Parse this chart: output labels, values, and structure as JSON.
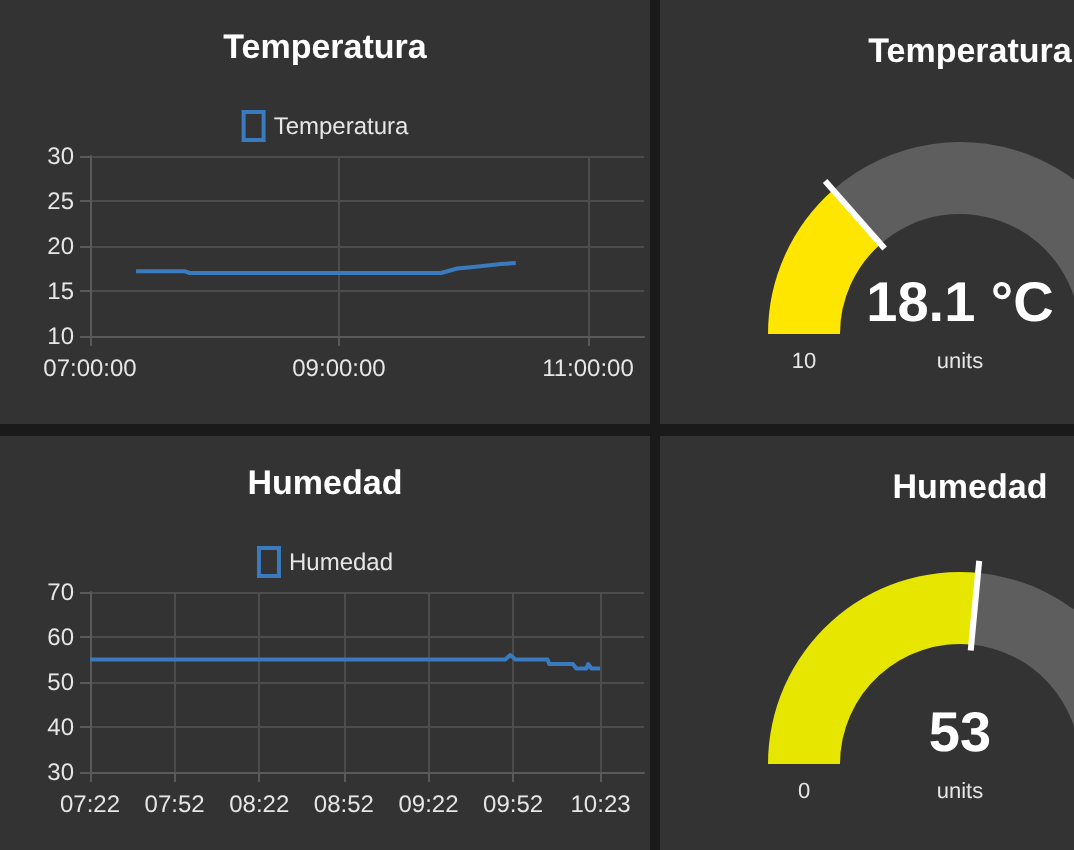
{
  "chart_data": [
    {
      "type": "line",
      "title": "Temperatura",
      "x": [
        7.37,
        7.76,
        7.8,
        9.82,
        9.95,
        10.1,
        10.3,
        10.42
      ],
      "series": [
        {
          "name": "Temperatura",
          "color": "#3a7bbf",
          "values": [
            17.2,
            17.2,
            17.0,
            17.0,
            17.5,
            17.7,
            18.0,
            18.1
          ]
        }
      ],
      "xlim": [
        7,
        11.45
      ],
      "xticks": [
        {
          "value": 7,
          "label": "07:00:00"
        },
        {
          "value": 9,
          "label": "09:00:00"
        },
        {
          "value": 11,
          "label": "11:00:00"
        }
      ],
      "ylim": [
        10,
        30
      ],
      "yticks": [
        10,
        15,
        20,
        25,
        30
      ],
      "grid": true,
      "legend": "top"
    },
    {
      "type": "donut",
      "title": "Temperatura",
      "categories": [
        null,
        null
      ],
      "values": [
        27,
        73
      ],
      "colors": [
        "#ffe600",
        "#5e5e5e"
      ],
      "annotations": [
        "18.1 °C",
        "10",
        "units"
      ]
    },
    {
      "type": "line",
      "title": "Humedad",
      "x": [
        7.3667,
        9.82,
        9.85,
        9.88,
        10.07,
        10.08,
        10.22,
        10.24,
        10.3,
        10.31,
        10.33,
        10.38
      ],
      "series": [
        {
          "name": "Humedad",
          "color": "#3a7bbf",
          "values": [
            55,
            55,
            56,
            55,
            55,
            54,
            54,
            53,
            53,
            54,
            53,
            53
          ]
        }
      ],
      "xlim": [
        7.3667,
        10.64
      ],
      "xticks": [
        {
          "value": 7.3667,
          "label": "07:22"
        },
        {
          "value": 7.8667,
          "label": "07:52"
        },
        {
          "value": 8.3667,
          "label": "08:22"
        },
        {
          "value": 8.8667,
          "label": "08:52"
        },
        {
          "value": 9.3667,
          "label": "09:22"
        },
        {
          "value": 9.8667,
          "label": "09:52"
        },
        {
          "value": 10.3833,
          "label": "10:23"
        }
      ],
      "ylim": [
        30,
        70
      ],
      "yticks": [
        30,
        40,
        50,
        60,
        70
      ],
      "grid": true,
      "legend": "top"
    },
    {
      "type": "donut",
      "title": "Humedad",
      "categories": [
        null,
        null
      ],
      "values": [
        53,
        47
      ],
      "colors": [
        "#e6e600",
        "#5e5e5e"
      ],
      "annotations": [
        "53",
        "0",
        "units"
      ]
    }
  ]
}
